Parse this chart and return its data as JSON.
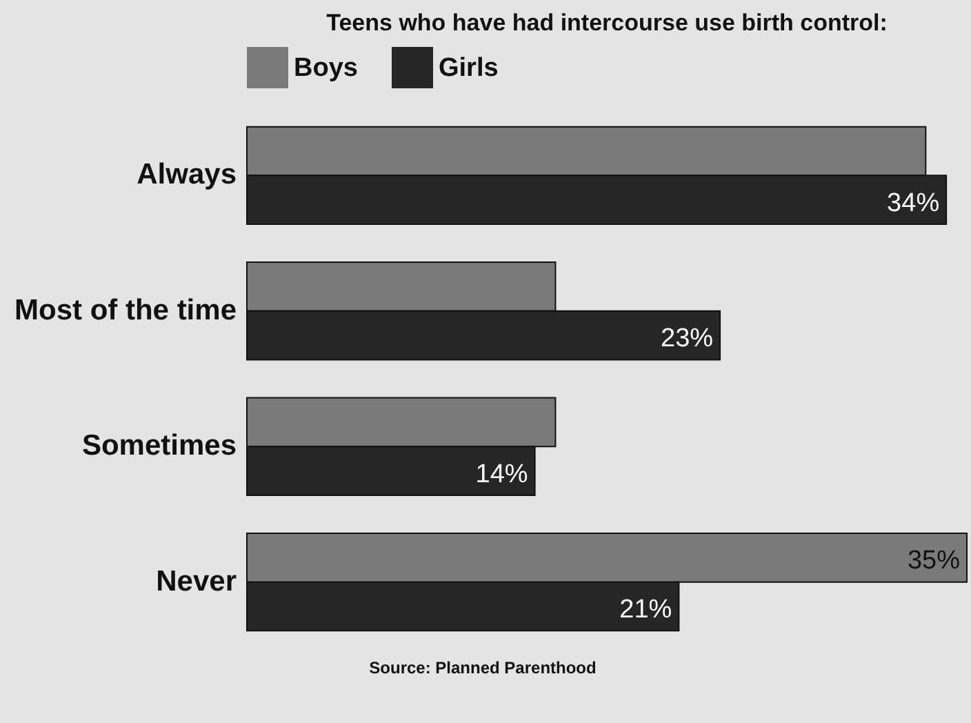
{
  "chart_data": {
    "type": "bar",
    "orientation": "horizontal",
    "title": "Teens who have had intercourse use birth control:",
    "categories": [
      "Always",
      "Most of the time",
      "Sometimes",
      "Never"
    ],
    "series": [
      {
        "name": "Boys",
        "color": "#7a7a7a",
        "values": [
          33,
          15,
          15,
          35
        ],
        "value_labels": [
          null,
          null,
          null,
          "35%"
        ]
      },
      {
        "name": "Girls",
        "color": "#262626",
        "values": [
          34,
          23,
          14,
          21
        ],
        "value_labels": [
          "34%",
          "23%",
          "14%",
          "21%"
        ]
      }
    ],
    "legend": "top",
    "grid": false,
    "annotations": [
      "Source: Planned Parenthood"
    ]
  }
}
